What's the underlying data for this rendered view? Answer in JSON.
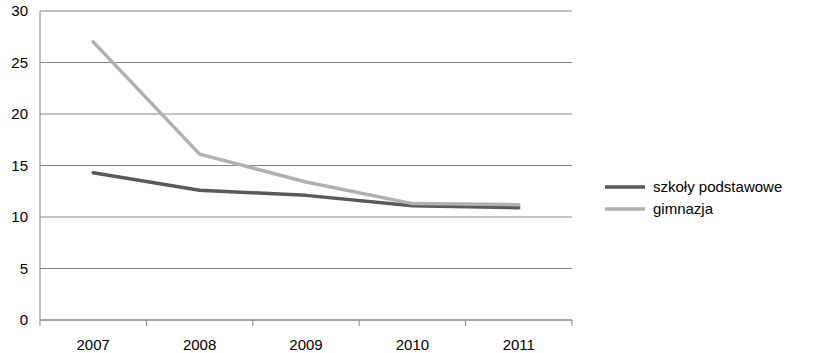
{
  "chart_data": {
    "type": "line",
    "categories": [
      "2007",
      "2008",
      "2009",
      "2010",
      "2011"
    ],
    "series": [
      {
        "name": "szkoły podstawowe",
        "color": "#595959",
        "values": [
          14.3,
          12.6,
          12.1,
          11.1,
          10.9
        ]
      },
      {
        "name": "gimnazja",
        "color": "#b0b0b0",
        "values": [
          27.0,
          16.1,
          13.4,
          11.3,
          11.2
        ]
      }
    ],
    "ylim": [
      0,
      30
    ],
    "yticks": [
      0,
      5,
      10,
      15,
      20,
      25,
      30
    ],
    "grid": true,
    "legend": "right"
  }
}
